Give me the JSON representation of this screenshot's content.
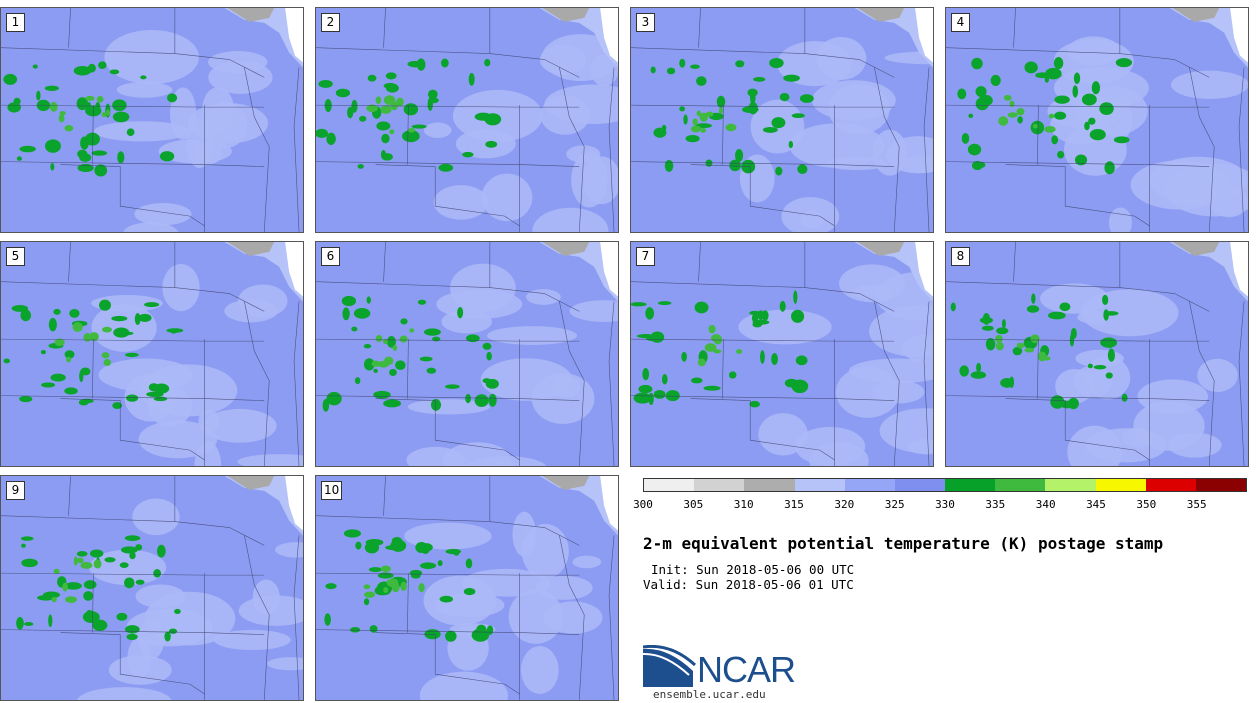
{
  "panels": [
    {
      "label": "1"
    },
    {
      "label": "2"
    },
    {
      "label": "3"
    },
    {
      "label": "4"
    },
    {
      "label": "5"
    },
    {
      "label": "6"
    },
    {
      "label": "7"
    },
    {
      "label": "8"
    },
    {
      "label": "9"
    },
    {
      "label": "10"
    }
  ],
  "colorbar": {
    "colors": [
      "#efefef",
      "#d2d2d2",
      "#adadad",
      "#b6c3f9",
      "#96a6f6",
      "#7f8ff0",
      "#07a12a",
      "#3fba3f",
      "#b4f26a",
      "#f7f700",
      "#dd0000",
      "#8b0000"
    ],
    "tick_labels": [
      "300",
      "305",
      "310",
      "315",
      "320",
      "325",
      "330",
      "335",
      "340",
      "345",
      "350",
      "355"
    ]
  },
  "title": "2-m equivalent potential temperature (K) postage stamp",
  "init": "Init: Sun 2018-05-06 00 UTC",
  "valid": "Valid: Sun 2018-05-06 01 UTC",
  "logo": {
    "name": "NCAR",
    "url": "ensemble.ucar.edu"
  }
}
